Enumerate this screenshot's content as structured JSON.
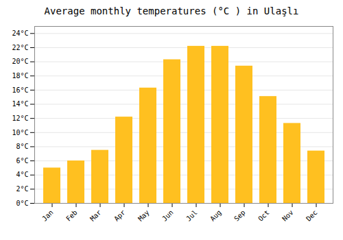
{
  "chart_data": {
    "type": "bar",
    "title": "Average monthly temperatures (°C ) in Ulaşlı",
    "categories": [
      "Jan",
      "Feb",
      "Mar",
      "Apr",
      "May",
      "Jun",
      "Jul",
      "Aug",
      "Sep",
      "Oct",
      "Nov",
      "Dec"
    ],
    "values": [
      5.0,
      6.0,
      7.5,
      12.2,
      16.3,
      20.3,
      22.2,
      22.2,
      19.4,
      15.1,
      11.3,
      7.4
    ],
    "color": "#FFC020",
    "ylim": [
      0,
      25
    ],
    "yticks": [
      {
        "value": 0,
        "label": "0°C"
      },
      {
        "value": 2,
        "label": "2°C"
      },
      {
        "value": 4,
        "label": "4°C"
      },
      {
        "value": 6,
        "label": "6°C"
      },
      {
        "value": 8,
        "label": "8°C"
      },
      {
        "value": 10,
        "label": "10°C"
      },
      {
        "value": 12,
        "label": "12°C"
      },
      {
        "value": 14,
        "label": "14°C"
      },
      {
        "value": 16,
        "label": "16°C"
      },
      {
        "value": 18,
        "label": "18°C"
      },
      {
        "value": 20,
        "label": "20°C"
      },
      {
        "value": 22,
        "label": "22°C"
      },
      {
        "value": 24,
        "label": "24°C"
      }
    ],
    "grid": true
  }
}
